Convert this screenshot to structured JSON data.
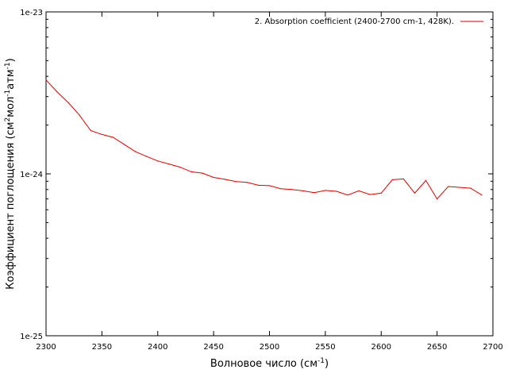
{
  "chart_data": {
    "type": "line",
    "title": "",
    "xlabel": "Волновое число (см-1)",
    "ylabel": "Коэффициент поглощения (см2мол-1атм-1)",
    "xlim": [
      2300,
      2700
    ],
    "ylim": [
      1e-25,
      1e-23
    ],
    "y_scale": "log",
    "grid": false,
    "legend_position": "top-right",
    "x_ticks": [
      "2300",
      "2350",
      "2400",
      "2450",
      "2500",
      "2550",
      "2600",
      "2650",
      "2700"
    ],
    "y_ticks": [
      "1e-25",
      "1e-24",
      "1e-23"
    ],
    "series": [
      {
        "name": "2. Absorption coefficient (2400-2700 cm-1, 428K).",
        "color": "#e00000",
        "x": [
          2300,
          2310,
          2320,
          2330,
          2340,
          2350,
          2360,
          2370,
          2380,
          2390,
          2400,
          2410,
          2420,
          2430,
          2440,
          2450,
          2460,
          2470,
          2480,
          2490,
          2500,
          2510,
          2520,
          2530,
          2540,
          2550,
          2560,
          2570,
          2580,
          2590,
          2600,
          2610,
          2620,
          2630,
          2640,
          2650,
          2660,
          2670,
          2680,
          2690
        ],
        "y": [
          3.8e-24,
          3.2e-24,
          2.75e-24,
          2.3e-24,
          1.85e-24,
          1.75e-24,
          1.68e-24,
          1.52e-24,
          1.37e-24,
          1.28e-24,
          1.2e-24,
          1.15e-24,
          1.1e-24,
          1.03e-24,
          1.01e-24,
          9.5e-25,
          9.25e-25,
          8.95e-25,
          8.85e-25,
          8.5e-25,
          8.45e-25,
          8.1e-25,
          8e-25,
          7.85e-25,
          7.65e-25,
          7.9e-25,
          7.8e-25,
          7.4e-25,
          7.85e-25,
          7.45e-25,
          7.6e-25,
          9.2e-25,
          9.3e-25,
          7.6e-25,
          9.1e-25,
          7e-25,
          8.35e-25,
          8.25e-25,
          8.15e-25,
          7.4e-25
        ]
      }
    ]
  }
}
